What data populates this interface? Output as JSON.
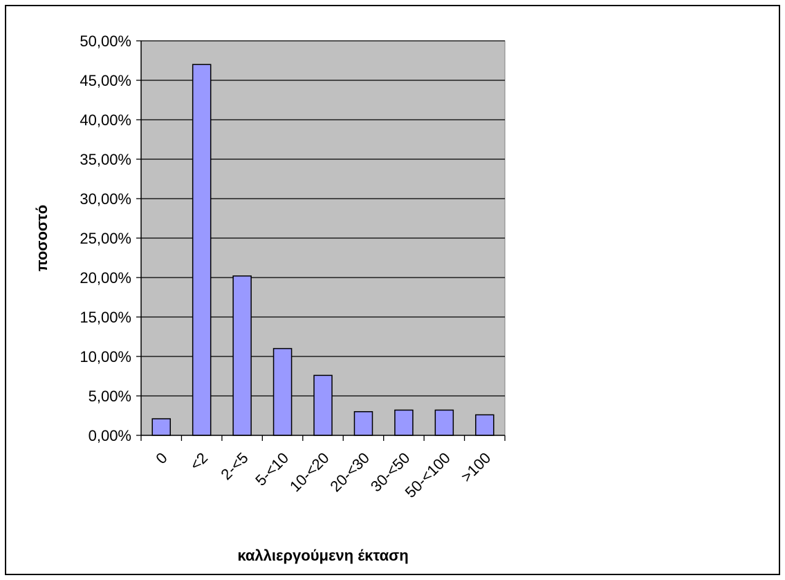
{
  "chart_data": {
    "type": "bar",
    "categories": [
      "0",
      "<2",
      "2-<5",
      "5-<10",
      "10-<20",
      "20-<30",
      "30-<50",
      "50-<100",
      ">100"
    ],
    "values": [
      2.1,
      47.0,
      20.2,
      11.0,
      7.6,
      3.0,
      3.2,
      3.2,
      2.6
    ],
    "xlabel": "καλλιεργούμενη έκταση",
    "ylabel": "ποσοστό",
    "ylim": [
      0,
      50
    ],
    "yticks": [
      "0,00%",
      "5,00%",
      "10,00%",
      "15,00%",
      "20,00%",
      "25,00%",
      "30,00%",
      "35,00%",
      "40,00%",
      "45,00%",
      "50,00%"
    ],
    "grid": true,
    "legend": "none",
    "colors": {
      "bar_fill": "#9999ff",
      "plot_bg": "#c0c0c0",
      "frame": "#000000",
      "page_bg": "#ffffff"
    }
  }
}
